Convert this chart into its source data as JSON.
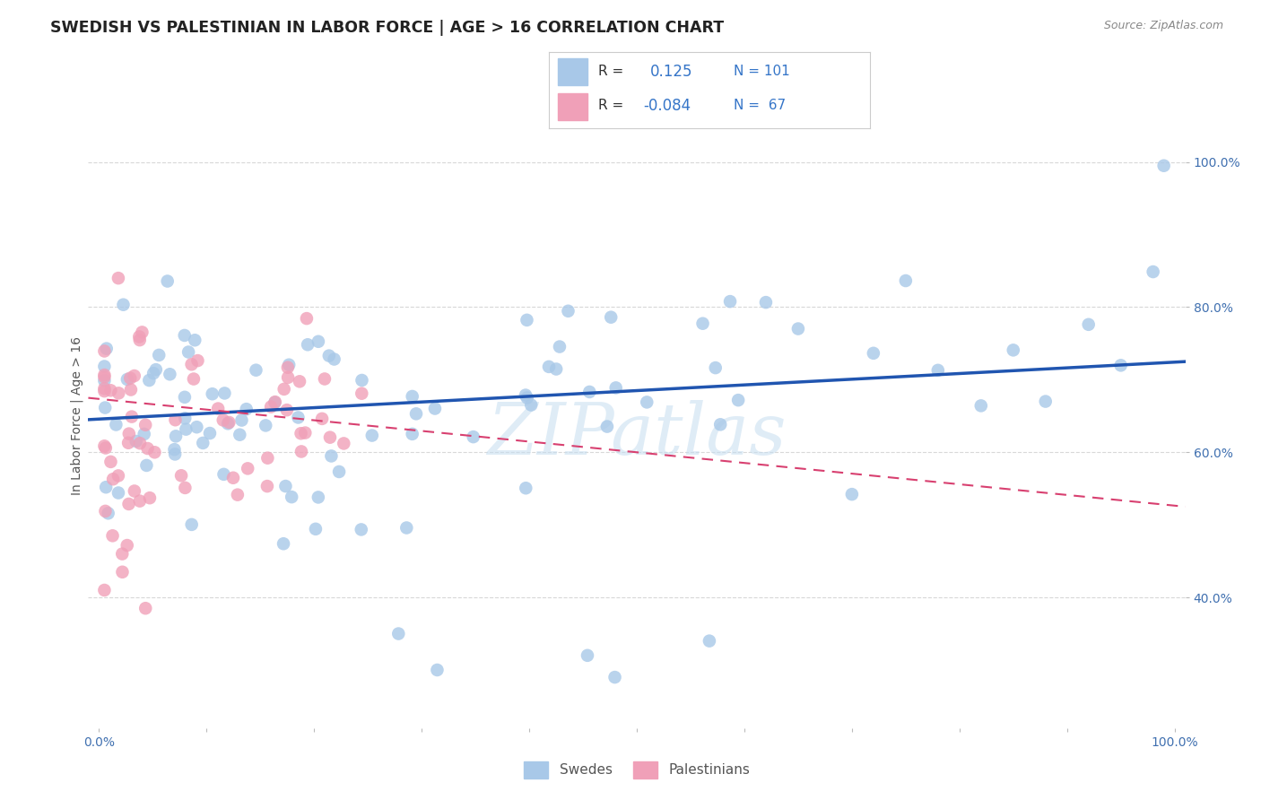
{
  "title": "SWEDISH VS PALESTINIAN IN LABOR FORCE | AGE > 16 CORRELATION CHART",
  "source": "Source: ZipAtlas.com",
  "ylabel": "In Labor Force | Age > 16",
  "r_swedes": 0.125,
  "n_swedes": 101,
  "r_palestinians": -0.084,
  "n_palestinians": 67,
  "xlim": [
    -0.01,
    1.01
  ],
  "ylim": [
    0.22,
    1.08
  ],
  "yticks": [
    0.4,
    0.6,
    0.8,
    1.0
  ],
  "ytick_labels": [
    "40.0%",
    "60.0%",
    "80.0%",
    "100.0%"
  ],
  "xtick_labels": [
    "0.0%",
    "",
    "",
    "",
    "",
    "",
    "",
    "",
    "",
    "",
    "100.0%"
  ],
  "watermark": "ZIPatlas",
  "blue_color": "#a8c8e8",
  "pink_color": "#f0a0b8",
  "line_blue": "#2055b0",
  "line_pink": "#d84070",
  "background_color": "#ffffff",
  "grid_color": "#d8d8d8",
  "title_color": "#222222",
  "source_color": "#888888",
  "axis_label_color": "#4070b0",
  "ylabel_color": "#555555",
  "sw_line_x0": 0.0,
  "sw_line_y0": 0.645,
  "sw_line_x1": 1.0,
  "sw_line_y1": 0.725,
  "pa_line_x0": 0.0,
  "pa_line_y0": 0.675,
  "pa_line_x1": 1.0,
  "pa_line_y1": 0.525
}
